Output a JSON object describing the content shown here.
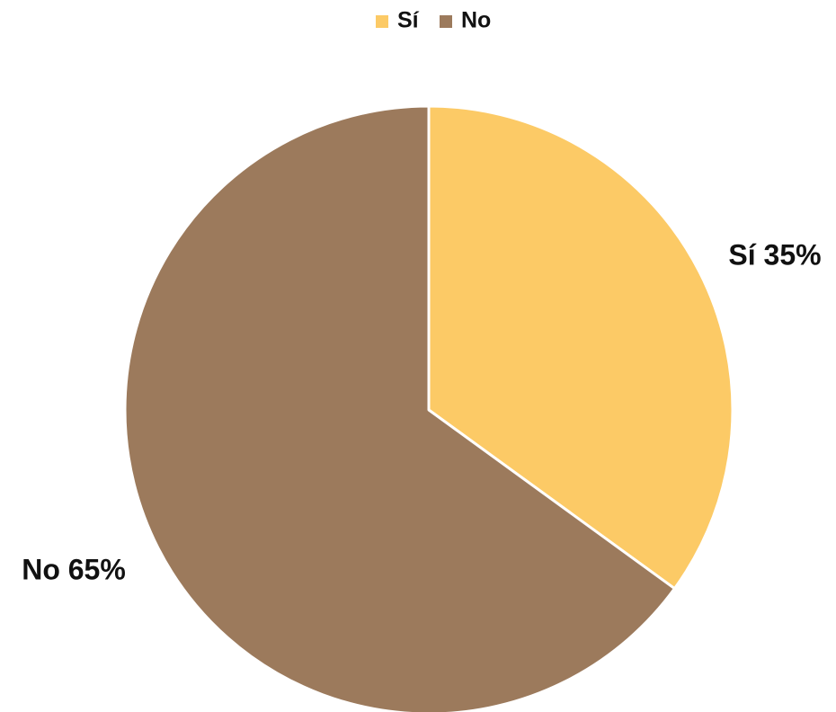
{
  "chart_data": {
    "type": "pie",
    "title": "",
    "legend_position": "top",
    "categories": [
      "Sí",
      "No"
    ],
    "values": [
      35,
      65
    ],
    "unit": "%",
    "colors": [
      "#FCCA66",
      "#9C7A5C"
    ],
    "start_angle": "12 o'clock",
    "direction": "clockwise",
    "data_labels": [
      "Sí 35%",
      "No 65%"
    ]
  }
}
